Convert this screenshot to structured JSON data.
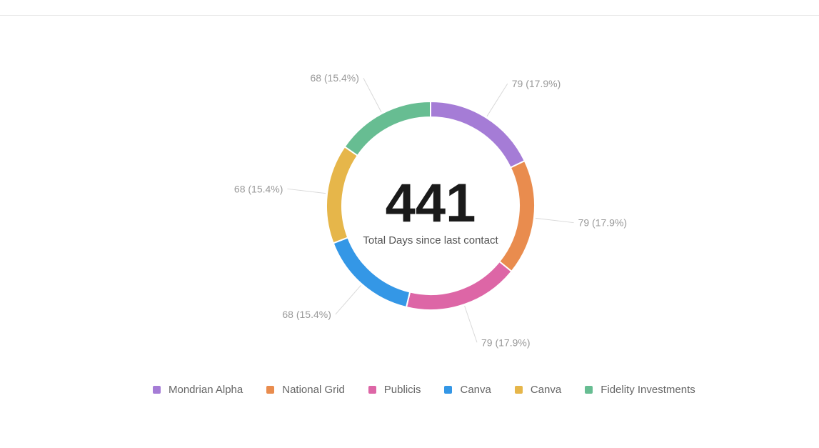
{
  "chart_data": {
    "type": "pie",
    "total": {
      "value": "441",
      "label": "Total Days since last contact"
    },
    "legend_placement": "bottom",
    "slices": [
      {
        "name": "Mondrian Alpha",
        "value": 79,
        "percent": "17.9%",
        "label": "79 (17.9%)",
        "color": "#a57cd6"
      },
      {
        "name": "National Grid",
        "value": 79,
        "percent": "17.9%",
        "label": "79 (17.9%)",
        "color": "#e98c4e"
      },
      {
        "name": "Publicis",
        "value": 79,
        "percent": "17.9%",
        "label": "79 (17.9%)",
        "color": "#dd66a6"
      },
      {
        "name": "Canva",
        "value": 68,
        "percent": "15.4%",
        "label": "68 (15.4%)",
        "color": "#3497e6"
      },
      {
        "name": "Canva",
        "value": 68,
        "percent": "15.4%",
        "label": "68 (15.4%)",
        "color": "#e6b64a"
      },
      {
        "name": "Fidelity Investments",
        "value": 68,
        "percent": "15.4%",
        "label": "68 (15.4%)",
        "color": "#67bd92"
      }
    ]
  }
}
